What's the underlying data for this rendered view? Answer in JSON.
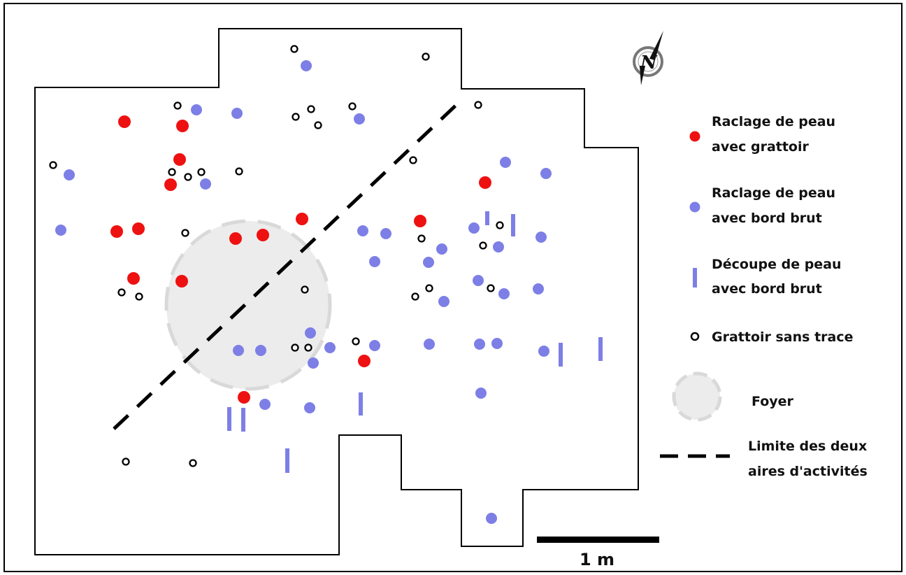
{
  "legend": {
    "raclage_grattoir": {
      "line1": "Raclage de peau",
      "line2": "avec grattoir",
      "color": "#ee1111"
    },
    "raclage_bord_brut": {
      "line1": "Raclage de peau",
      "line2": "avec bord brut",
      "color": "#7d7fe6"
    },
    "decoupe_bord_brut": {
      "line1": "Découpe de peau",
      "line2": "avec bord brut",
      "color": "#7d7fe6"
    },
    "grattoir_sans_trace": {
      "line1": "Grattoir sans trace",
      "color": "#000000"
    },
    "foyer": {
      "label": "Foyer",
      "color": "#ececec"
    },
    "limite": {
      "line1": "Limite des deux",
      "line2": "aires d'activités",
      "color": "#000000"
    }
  },
  "scale": {
    "label": "1 m"
  },
  "north": {
    "letter": "N",
    "icon": "north-compass-icon"
  },
  "colors": {
    "red": "#ee1111",
    "blue": "#7d7fe6",
    "hearth_fill": "#ececec",
    "hearth_stroke": "#d9d9d9",
    "outline": "#000000"
  }
}
